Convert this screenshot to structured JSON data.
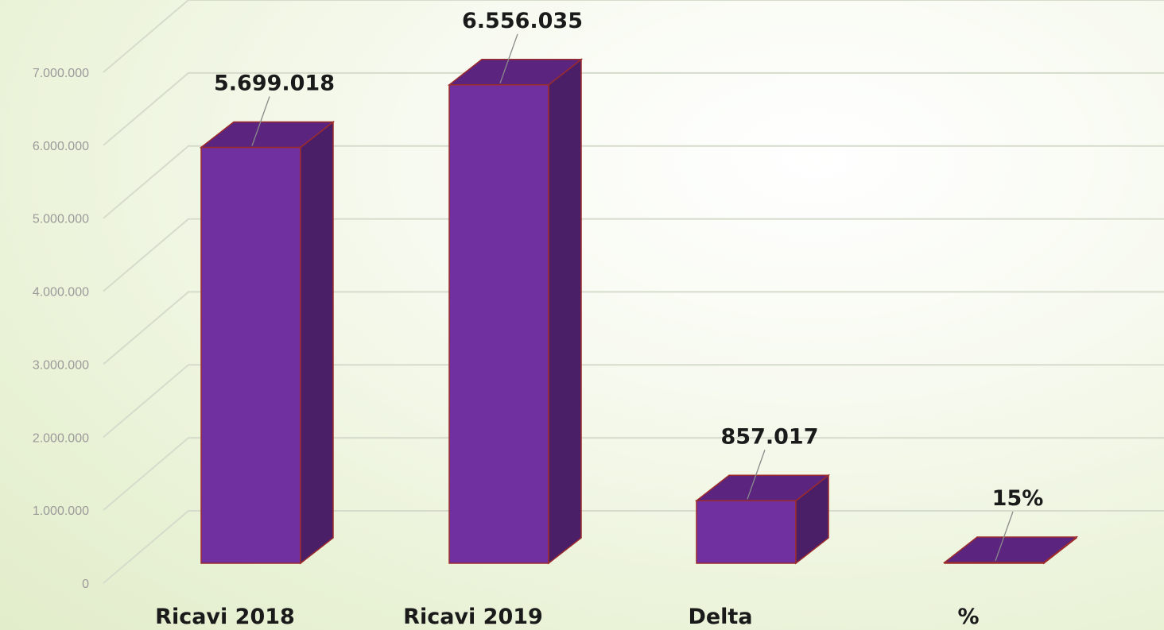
{
  "chart_data": {
    "type": "bar",
    "style": "3d-column",
    "categories": [
      "Ricavi 2018",
      "Ricavi 2019",
      "Delta",
      "%"
    ],
    "values": [
      5699018,
      6556035,
      857017,
      0.15
    ],
    "data_labels": [
      "5.699.018",
      "6.556.035",
      "857.017",
      "15%"
    ],
    "yticks": [
      "0",
      "1.000.000",
      "2.000.000",
      "3.000.000",
      "4.000.000",
      "5.000.000",
      "6.000.000",
      "7.000.000"
    ],
    "ylim": [
      0,
      7000000
    ],
    "grid": true,
    "legend": "none",
    "colors": {
      "front": "#7030a0",
      "side": "#4b1f68",
      "top": "#5b247f",
      "edge": "#9c2c2c",
      "grid": "#d6dccb"
    }
  }
}
